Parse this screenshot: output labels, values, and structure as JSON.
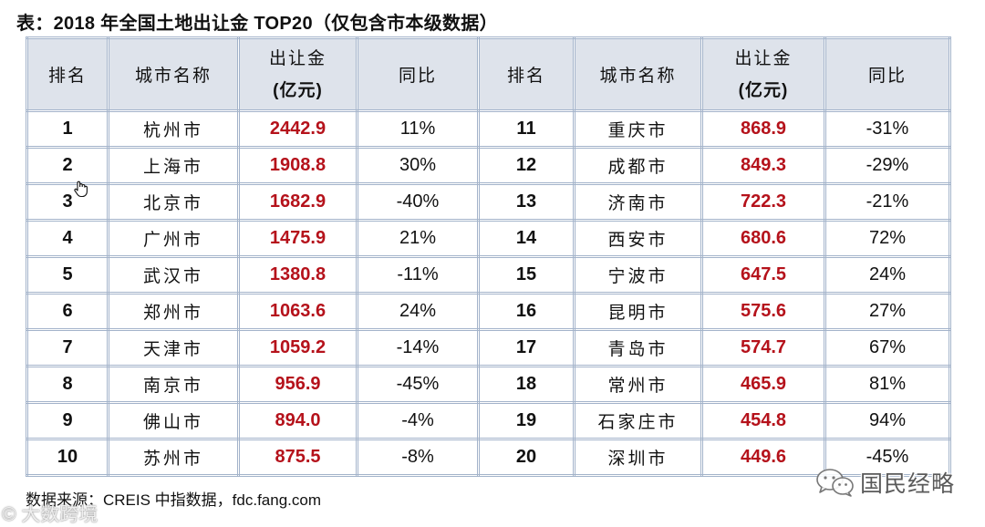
{
  "chart_data": {
    "type": "table",
    "title": "表：2018 年全国土地出让金 TOP20（仅包含市本级数据）",
    "columns": [
      {
        "label": "排名"
      },
      {
        "label": "城市名称"
      },
      {
        "label": "出让金",
        "unit": "(亿元)"
      },
      {
        "label": "同比"
      }
    ],
    "rows": [
      {
        "rank": 1,
        "city": "杭州市",
        "amount": "2442.9",
        "yoy": "11%"
      },
      {
        "rank": 2,
        "city": "上海市",
        "amount": "1908.8",
        "yoy": "30%"
      },
      {
        "rank": 3,
        "city": "北京市",
        "amount": "1682.9",
        "yoy": "-40%"
      },
      {
        "rank": 4,
        "city": "广州市",
        "amount": "1475.9",
        "yoy": "21%"
      },
      {
        "rank": 5,
        "city": "武汉市",
        "amount": "1380.8",
        "yoy": "-11%"
      },
      {
        "rank": 6,
        "city": "郑州市",
        "amount": "1063.6",
        "yoy": "24%"
      },
      {
        "rank": 7,
        "city": "天津市",
        "amount": "1059.2",
        "yoy": "-14%"
      },
      {
        "rank": 8,
        "city": "南京市",
        "amount": "956.9",
        "yoy": "-45%"
      },
      {
        "rank": 9,
        "city": "佛山市",
        "amount": "894.0",
        "yoy": "-4%"
      },
      {
        "rank": 10,
        "city": "苏州市",
        "amount": "875.5",
        "yoy": "-8%"
      },
      {
        "rank": 11,
        "city": "重庆市",
        "amount": "868.9",
        "yoy": "-31%"
      },
      {
        "rank": 12,
        "city": "成都市",
        "amount": "849.3",
        "yoy": "-29%"
      },
      {
        "rank": 13,
        "city": "济南市",
        "amount": "722.3",
        "yoy": "-21%"
      },
      {
        "rank": 14,
        "city": "西安市",
        "amount": "680.6",
        "yoy": "72%"
      },
      {
        "rank": 15,
        "city": "宁波市",
        "amount": "647.5",
        "yoy": "24%"
      },
      {
        "rank": 16,
        "city": "昆明市",
        "amount": "575.6",
        "yoy": "27%"
      },
      {
        "rank": 17,
        "city": "青岛市",
        "amount": "574.7",
        "yoy": "67%"
      },
      {
        "rank": 18,
        "city": "常州市",
        "amount": "465.9",
        "yoy": "81%"
      },
      {
        "rank": 19,
        "city": "石家庄市",
        "amount": "454.8",
        "yoy": "94%"
      },
      {
        "rank": 20,
        "city": "深圳市",
        "amount": "449.6",
        "yoy": "-45%"
      }
    ]
  },
  "source": "数据来源：CREIS 中指数据，fdc.fang.com",
  "watermark": {
    "brand": "国民经略",
    "corner": "© 大数跨境"
  },
  "colors": {
    "header_bg": "#dee3eb",
    "border": "#a3b3ca",
    "amount_text": "#b5121b"
  },
  "icons": {
    "cursor": "hand-cursor-icon",
    "watermark_logo": "wechat-icon"
  }
}
